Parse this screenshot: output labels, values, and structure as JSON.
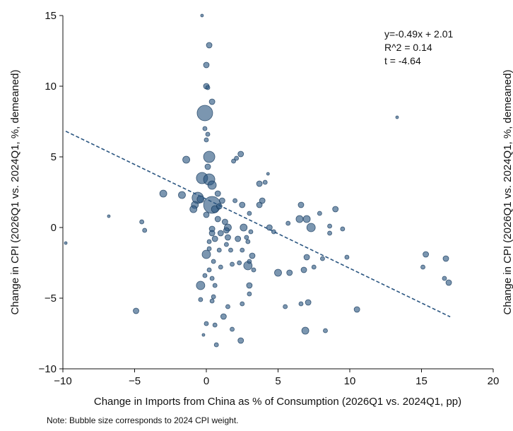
{
  "chart_data": {
    "type": "scatter",
    "subtype": "bubble",
    "xlabel": "Change in Imports from China as % of Consumption (2026Q1 vs. 2024Q1, pp)",
    "ylabel": "Change in CPI (2026Q1 vs. 2024Q1, %, demeaned)",
    "ylabel_right": "Change in CPI (2026Q1 vs. 2024Q1, %, demeaned)",
    "xlim": [
      -10,
      20
    ],
    "ylim": [
      -10,
      15
    ],
    "xticks": [
      -10,
      -5,
      0,
      5,
      10,
      15,
      20
    ],
    "yticks": [
      -10,
      -5,
      0,
      5,
      10,
      15
    ],
    "xtick_labels": [
      "−10",
      "−5",
      "0",
      "5",
      "10",
      "15",
      "20"
    ],
    "ytick_labels": [
      "−10",
      "−5",
      "0",
      "5",
      "10",
      "15"
    ],
    "grid": false,
    "bubble_color": "#2a5580",
    "line_color": "#2a5580",
    "annotation": [
      "y=-0.49x + 2.01",
      "R^2 =  0.14",
      "t = -4.64"
    ],
    "note": "Note: Bubble size corresponds to 2024 CPI weight.",
    "fit_line": {
      "slope": -0.49,
      "intercept": 2.01,
      "x_range": [
        -9.8,
        17
      ]
    },
    "points": [
      {
        "x": -9.8,
        "y": -1.1,
        "r": 2
      },
      {
        "x": -6.8,
        "y": 0.8,
        "r": 2
      },
      {
        "x": -4.5,
        "y": 0.4,
        "r": 3
      },
      {
        "x": -4.3,
        "y": -0.2,
        "r": 3
      },
      {
        "x": -4.9,
        "y": -5.9,
        "r": 4
      },
      {
        "x": -3.0,
        "y": 2.4,
        "r": 5
      },
      {
        "x": -1.7,
        "y": 2.3,
        "r": 5
      },
      {
        "x": -1.4,
        "y": 4.8,
        "r": 5
      },
      {
        "x": -0.8,
        "y": 1.6,
        "r": 5
      },
      {
        "x": -0.9,
        "y": 1.3,
        "r": 5
      },
      {
        "x": -0.4,
        "y": 2.0,
        "r": 5
      },
      {
        "x": -0.3,
        "y": 15.0,
        "r": 2
      },
      {
        "x": 0.2,
        "y": 12.9,
        "r": 4
      },
      {
        "x": 0.0,
        "y": 11.5,
        "r": 4
      },
      {
        "x": 0.0,
        "y": 10.0,
        "r": 4
      },
      {
        "x": 0.1,
        "y": 9.9,
        "r": 3
      },
      {
        "x": 0.4,
        "y": 8.9,
        "r": 4
      },
      {
        "x": -0.1,
        "y": 8.1,
        "r": 11
      },
      {
        "x": -0.1,
        "y": 7.0,
        "r": 3
      },
      {
        "x": 0.1,
        "y": 6.6,
        "r": 3
      },
      {
        "x": 0.0,
        "y": 6.2,
        "r": 3
      },
      {
        "x": 0.2,
        "y": 5.0,
        "r": 8
      },
      {
        "x": 0.1,
        "y": 4.3,
        "r": 4
      },
      {
        "x": -0.3,
        "y": 3.5,
        "r": 8
      },
      {
        "x": 0.2,
        "y": 3.4,
        "r": 8
      },
      {
        "x": 0.4,
        "y": 3.0,
        "r": 6
      },
      {
        "x": -0.6,
        "y": 2.1,
        "r": 8
      },
      {
        "x": 0.4,
        "y": 1.6,
        "r": 12
      },
      {
        "x": 0.0,
        "y": 0.9,
        "r": 4
      },
      {
        "x": 0.6,
        "y": 1.3,
        "r": 5
      },
      {
        "x": 0.9,
        "y": 1.5,
        "r": 4
      },
      {
        "x": 1.1,
        "y": 1.9,
        "r": 4
      },
      {
        "x": 0.8,
        "y": 2.4,
        "r": 4
      },
      {
        "x": 0.8,
        "y": 0.6,
        "r": 4
      },
      {
        "x": 1.3,
        "y": 0.4,
        "r": 4
      },
      {
        "x": 0.4,
        "y": -0.1,
        "r": 4
      },
      {
        "x": 0.4,
        "y": -0.4,
        "r": 4
      },
      {
        "x": 0.6,
        "y": -0.8,
        "r": 4
      },
      {
        "x": 1.0,
        "y": -0.4,
        "r": 4
      },
      {
        "x": 1.4,
        "y": -0.2,
        "r": 4
      },
      {
        "x": 1.5,
        "y": -0.7,
        "r": 4
      },
      {
        "x": 1.5,
        "y": 0.0,
        "r": 5
      },
      {
        "x": 0.2,
        "y": -1.0,
        "r": 3
      },
      {
        "x": 0.0,
        "y": -1.9,
        "r": 6
      },
      {
        "x": 0.2,
        "y": -1.5,
        "r": 3
      },
      {
        "x": 0.9,
        "y": -1.6,
        "r": 3
      },
      {
        "x": 1.4,
        "y": -1.2,
        "r": 3
      },
      {
        "x": 1.7,
        "y": -1.6,
        "r": 3
      },
      {
        "x": 2.2,
        "y": -0.8,
        "r": 4
      },
      {
        "x": 2.6,
        "y": 0.0,
        "r": 5
      },
      {
        "x": 2.8,
        "y": -0.7,
        "r": 3
      },
      {
        "x": 3.1,
        "y": -0.3,
        "r": 3
      },
      {
        "x": 2.9,
        "y": -1.0,
        "r": 3
      },
      {
        "x": 2.5,
        "y": -1.6,
        "r": 3
      },
      {
        "x": 3.2,
        "y": -2.0,
        "r": 4
      },
      {
        "x": 3.0,
        "y": -2.4,
        "r": 3
      },
      {
        "x": 2.9,
        "y": -2.7,
        "r": 6
      },
      {
        "x": 3.3,
        "y": -3.0,
        "r": 3
      },
      {
        "x": 2.3,
        "y": -2.5,
        "r": 3
      },
      {
        "x": 1.8,
        "y": -2.6,
        "r": 3
      },
      {
        "x": 1.9,
        "y": 4.7,
        "r": 3
      },
      {
        "x": 2.1,
        "y": 4.9,
        "r": 3
      },
      {
        "x": 2.4,
        "y": 5.2,
        "r": 4
      },
      {
        "x": 2.0,
        "y": 1.9,
        "r": 3
      },
      {
        "x": 2.5,
        "y": 1.6,
        "r": 4
      },
      {
        "x": 3.0,
        "y": 1.0,
        "r": 3
      },
      {
        "x": 3.7,
        "y": 1.6,
        "r": 4
      },
      {
        "x": 4.1,
        "y": 3.2,
        "r": 3
      },
      {
        "x": 3.7,
        "y": 3.1,
        "r": 4
      },
      {
        "x": 3.9,
        "y": 1.9,
        "r": 4
      },
      {
        "x": 4.3,
        "y": 3.8,
        "r": 2
      },
      {
        "x": 4.4,
        "y": 0.0,
        "r": 4
      },
      {
        "x": 4.7,
        "y": -0.3,
        "r": 3
      },
      {
        "x": 5.7,
        "y": 0.3,
        "r": 3
      },
      {
        "x": 6.5,
        "y": 0.6,
        "r": 5
      },
      {
        "x": 6.6,
        "y": 1.6,
        "r": 4
      },
      {
        "x": 7.3,
        "y": 0.0,
        "r": 6
      },
      {
        "x": 7.0,
        "y": 0.6,
        "r": 5
      },
      {
        "x": 7.9,
        "y": 1.0,
        "r": 3
      },
      {
        "x": 9.0,
        "y": 1.3,
        "r": 4
      },
      {
        "x": 8.6,
        "y": -0.4,
        "r": 3
      },
      {
        "x": 8.6,
        "y": 0.1,
        "r": 3
      },
      {
        "x": 9.5,
        "y": -0.1,
        "r": 3
      },
      {
        "x": 9.8,
        "y": -2.1,
        "r": 3
      },
      {
        "x": 8.1,
        "y": -2.2,
        "r": 3
      },
      {
        "x": 7.5,
        "y": -2.8,
        "r": 3
      },
      {
        "x": 7.0,
        "y": -2.1,
        "r": 4
      },
      {
        "x": 6.8,
        "y": -3.0,
        "r": 4
      },
      {
        "x": 5.8,
        "y": -3.2,
        "r": 4
      },
      {
        "x": 5.5,
        "y": -5.6,
        "r": 3
      },
      {
        "x": 6.6,
        "y": -5.4,
        "r": 3
      },
      {
        "x": 7.1,
        "y": -5.3,
        "r": 4
      },
      {
        "x": 6.9,
        "y": -7.3,
        "r": 5
      },
      {
        "x": 8.3,
        "y": -7.3,
        "r": 3
      },
      {
        "x": 10.5,
        "y": -5.8,
        "r": 4
      },
      {
        "x": 5.0,
        "y": -3.2,
        "r": 5
      },
      {
        "x": 3.0,
        "y": -4.1,
        "r": 4
      },
      {
        "x": 3.0,
        "y": -4.7,
        "r": 3
      },
      {
        "x": 2.5,
        "y": -5.4,
        "r": 3
      },
      {
        "x": 1.5,
        "y": -5.6,
        "r": 3
      },
      {
        "x": 1.2,
        "y": -6.3,
        "r": 4
      },
      {
        "x": 1.8,
        "y": -7.2,
        "r": 3
      },
      {
        "x": 2.4,
        "y": -8.0,
        "r": 4
      },
      {
        "x": 0.6,
        "y": -6.9,
        "r": 3
      },
      {
        "x": 0.7,
        "y": -8.3,
        "r": 3
      },
      {
        "x": 0.0,
        "y": -6.8,
        "r": 3
      },
      {
        "x": -0.2,
        "y": -7.6,
        "r": 2
      },
      {
        "x": -0.4,
        "y": -5.1,
        "r": 3
      },
      {
        "x": -0.4,
        "y": -4.1,
        "r": 6
      },
      {
        "x": 0.4,
        "y": -3.6,
        "r": 3
      },
      {
        "x": 0.6,
        "y": -4.1,
        "r": 3
      },
      {
        "x": 0.5,
        "y": -4.9,
        "r": 3
      },
      {
        "x": 0.4,
        "y": -5.2,
        "r": 3
      },
      {
        "x": 0.2,
        "y": -3.0,
        "r": 3
      },
      {
        "x": -0.1,
        "y": -3.4,
        "r": 3
      },
      {
        "x": 0.5,
        "y": -2.4,
        "r": 3
      },
      {
        "x": 1.0,
        "y": -2.8,
        "r": 3
      },
      {
        "x": 13.3,
        "y": 7.8,
        "r": 2
      },
      {
        "x": 15.3,
        "y": -1.9,
        "r": 4
      },
      {
        "x": 15.1,
        "y": -2.8,
        "r": 3
      },
      {
        "x": 16.7,
        "y": -2.2,
        "r": 4
      },
      {
        "x": 16.6,
        "y": -3.6,
        "r": 3
      },
      {
        "x": 16.9,
        "y": -3.9,
        "r": 4
      }
    ]
  }
}
